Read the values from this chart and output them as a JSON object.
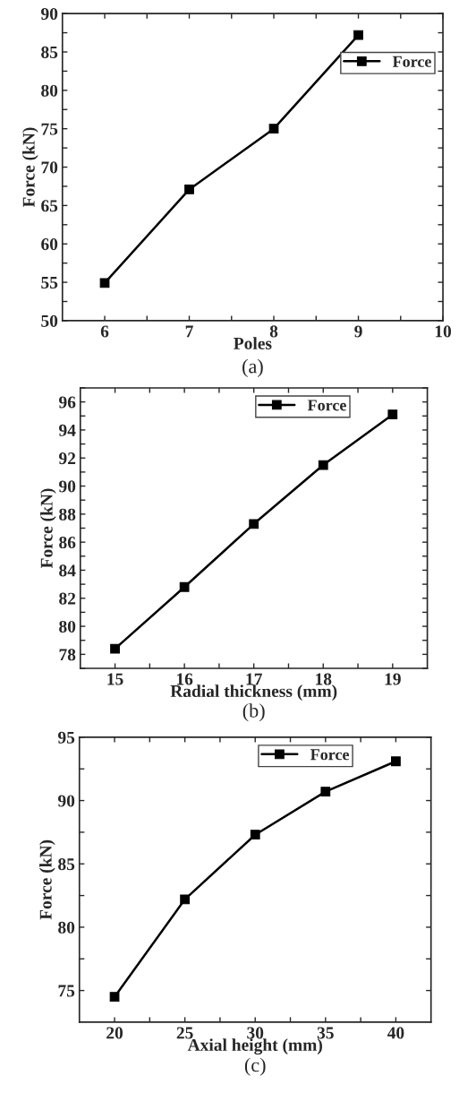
{
  "chart_data": [
    {
      "type": "line",
      "xlabel": "Poles",
      "ylabel": "Force (kN)",
      "annotations": [
        "(a)"
      ],
      "x": [
        6,
        7,
        8,
        9
      ],
      "series": [
        {
          "name": "Force",
          "color": "#000000",
          "values": [
            54.9,
            67.1,
            75.0,
            87.2
          ]
        }
      ],
      "xlim": [
        5.5,
        10
      ],
      "xticks": [
        6,
        {
          "value": 6.5,
          "label": null
        },
        7,
        {
          "value": 7.5,
          "label": null
        },
        8,
        {
          "value": 8.5,
          "label": null
        },
        9,
        {
          "value": 9.5,
          "label": null
        },
        10
      ],
      "ylim": [
        50,
        90
      ],
      "yticks": [
        50,
        {
          "value": 52.5,
          "label": null
        },
        55,
        {
          "value": 57.5,
          "label": null
        },
        60,
        {
          "value": 62.5,
          "label": null
        },
        65,
        {
          "value": 67.5,
          "label": null
        },
        70,
        {
          "value": 72.5,
          "label": null
        },
        75,
        {
          "value": 77.5,
          "label": null
        },
        80,
        {
          "value": 82.5,
          "label": null
        },
        85,
        {
          "value": 87.5,
          "label": null
        },
        90
      ],
      "legend": "top right",
      "marker": "square",
      "line_style": "solid",
      "grid": false
    },
    {
      "type": "line",
      "xlabel": "Radial thickness (mm)",
      "ylabel": "Force (kN)",
      "annotations": [
        "(b)"
      ],
      "x": [
        15,
        16,
        17,
        18,
        19
      ],
      "series": [
        {
          "name": "Force",
          "color": "#000000",
          "values": [
            78.4,
            82.8,
            87.3,
            91.5,
            95.1
          ]
        }
      ],
      "xlim": [
        14.5,
        19.5
      ],
      "xticks": [
        15,
        {
          "value": 15.5,
          "label": null
        },
        16,
        {
          "value": 16.5,
          "label": null
        },
        17,
        {
          "value": 17.5,
          "label": null
        },
        18,
        {
          "value": 18.5,
          "label": null
        },
        19
      ],
      "ylim": [
        77,
        97
      ],
      "yticks": [
        {
          "value": 77,
          "label": null
        },
        78,
        {
          "value": 79,
          "label": null
        },
        80,
        {
          "value": 81,
          "label": null
        },
        82,
        {
          "value": 83,
          "label": null
        },
        84,
        {
          "value": 85,
          "label": null
        },
        86,
        {
          "value": 87,
          "label": null
        },
        88,
        {
          "value": 89,
          "label": null
        },
        90,
        {
          "value": 91,
          "label": null
        },
        92,
        {
          "value": 93,
          "label": null
        },
        94,
        {
          "value": 95,
          "label": null
        },
        96,
        {
          "value": 97,
          "label": null
        }
      ],
      "legend": "top right",
      "marker": "square",
      "line_style": "solid",
      "grid": false
    },
    {
      "type": "line",
      "xlabel": "Axial height (mm)",
      "ylabel": "Force (kN)",
      "annotations": [
        "(c)"
      ],
      "x": [
        20,
        25,
        30,
        35,
        40
      ],
      "series": [
        {
          "name": "Force",
          "color": "#000000",
          "values": [
            74.5,
            82.2,
            87.3,
            90.7,
            93.1
          ]
        }
      ],
      "xlim": [
        17.5,
        42.5
      ],
      "xticks": [
        20,
        {
          "value": 22.5,
          "label": null
        },
        25,
        {
          "value": 27.5,
          "label": null
        },
        30,
        {
          "value": 32.5,
          "label": null
        },
        35,
        {
          "value": 37.5,
          "label": null
        },
        40
      ],
      "ylim": [
        72.5,
        95
      ],
      "yticks": [
        75,
        {
          "value": 77.5,
          "label": null
        },
        80,
        {
          "value": 82.5,
          "label": null
        },
        85,
        {
          "value": 87.5,
          "label": null
        },
        90,
        {
          "value": 92.5,
          "label": null
        },
        95
      ],
      "legend": "top right",
      "marker": "square",
      "line_style": "solid",
      "grid": false
    }
  ]
}
